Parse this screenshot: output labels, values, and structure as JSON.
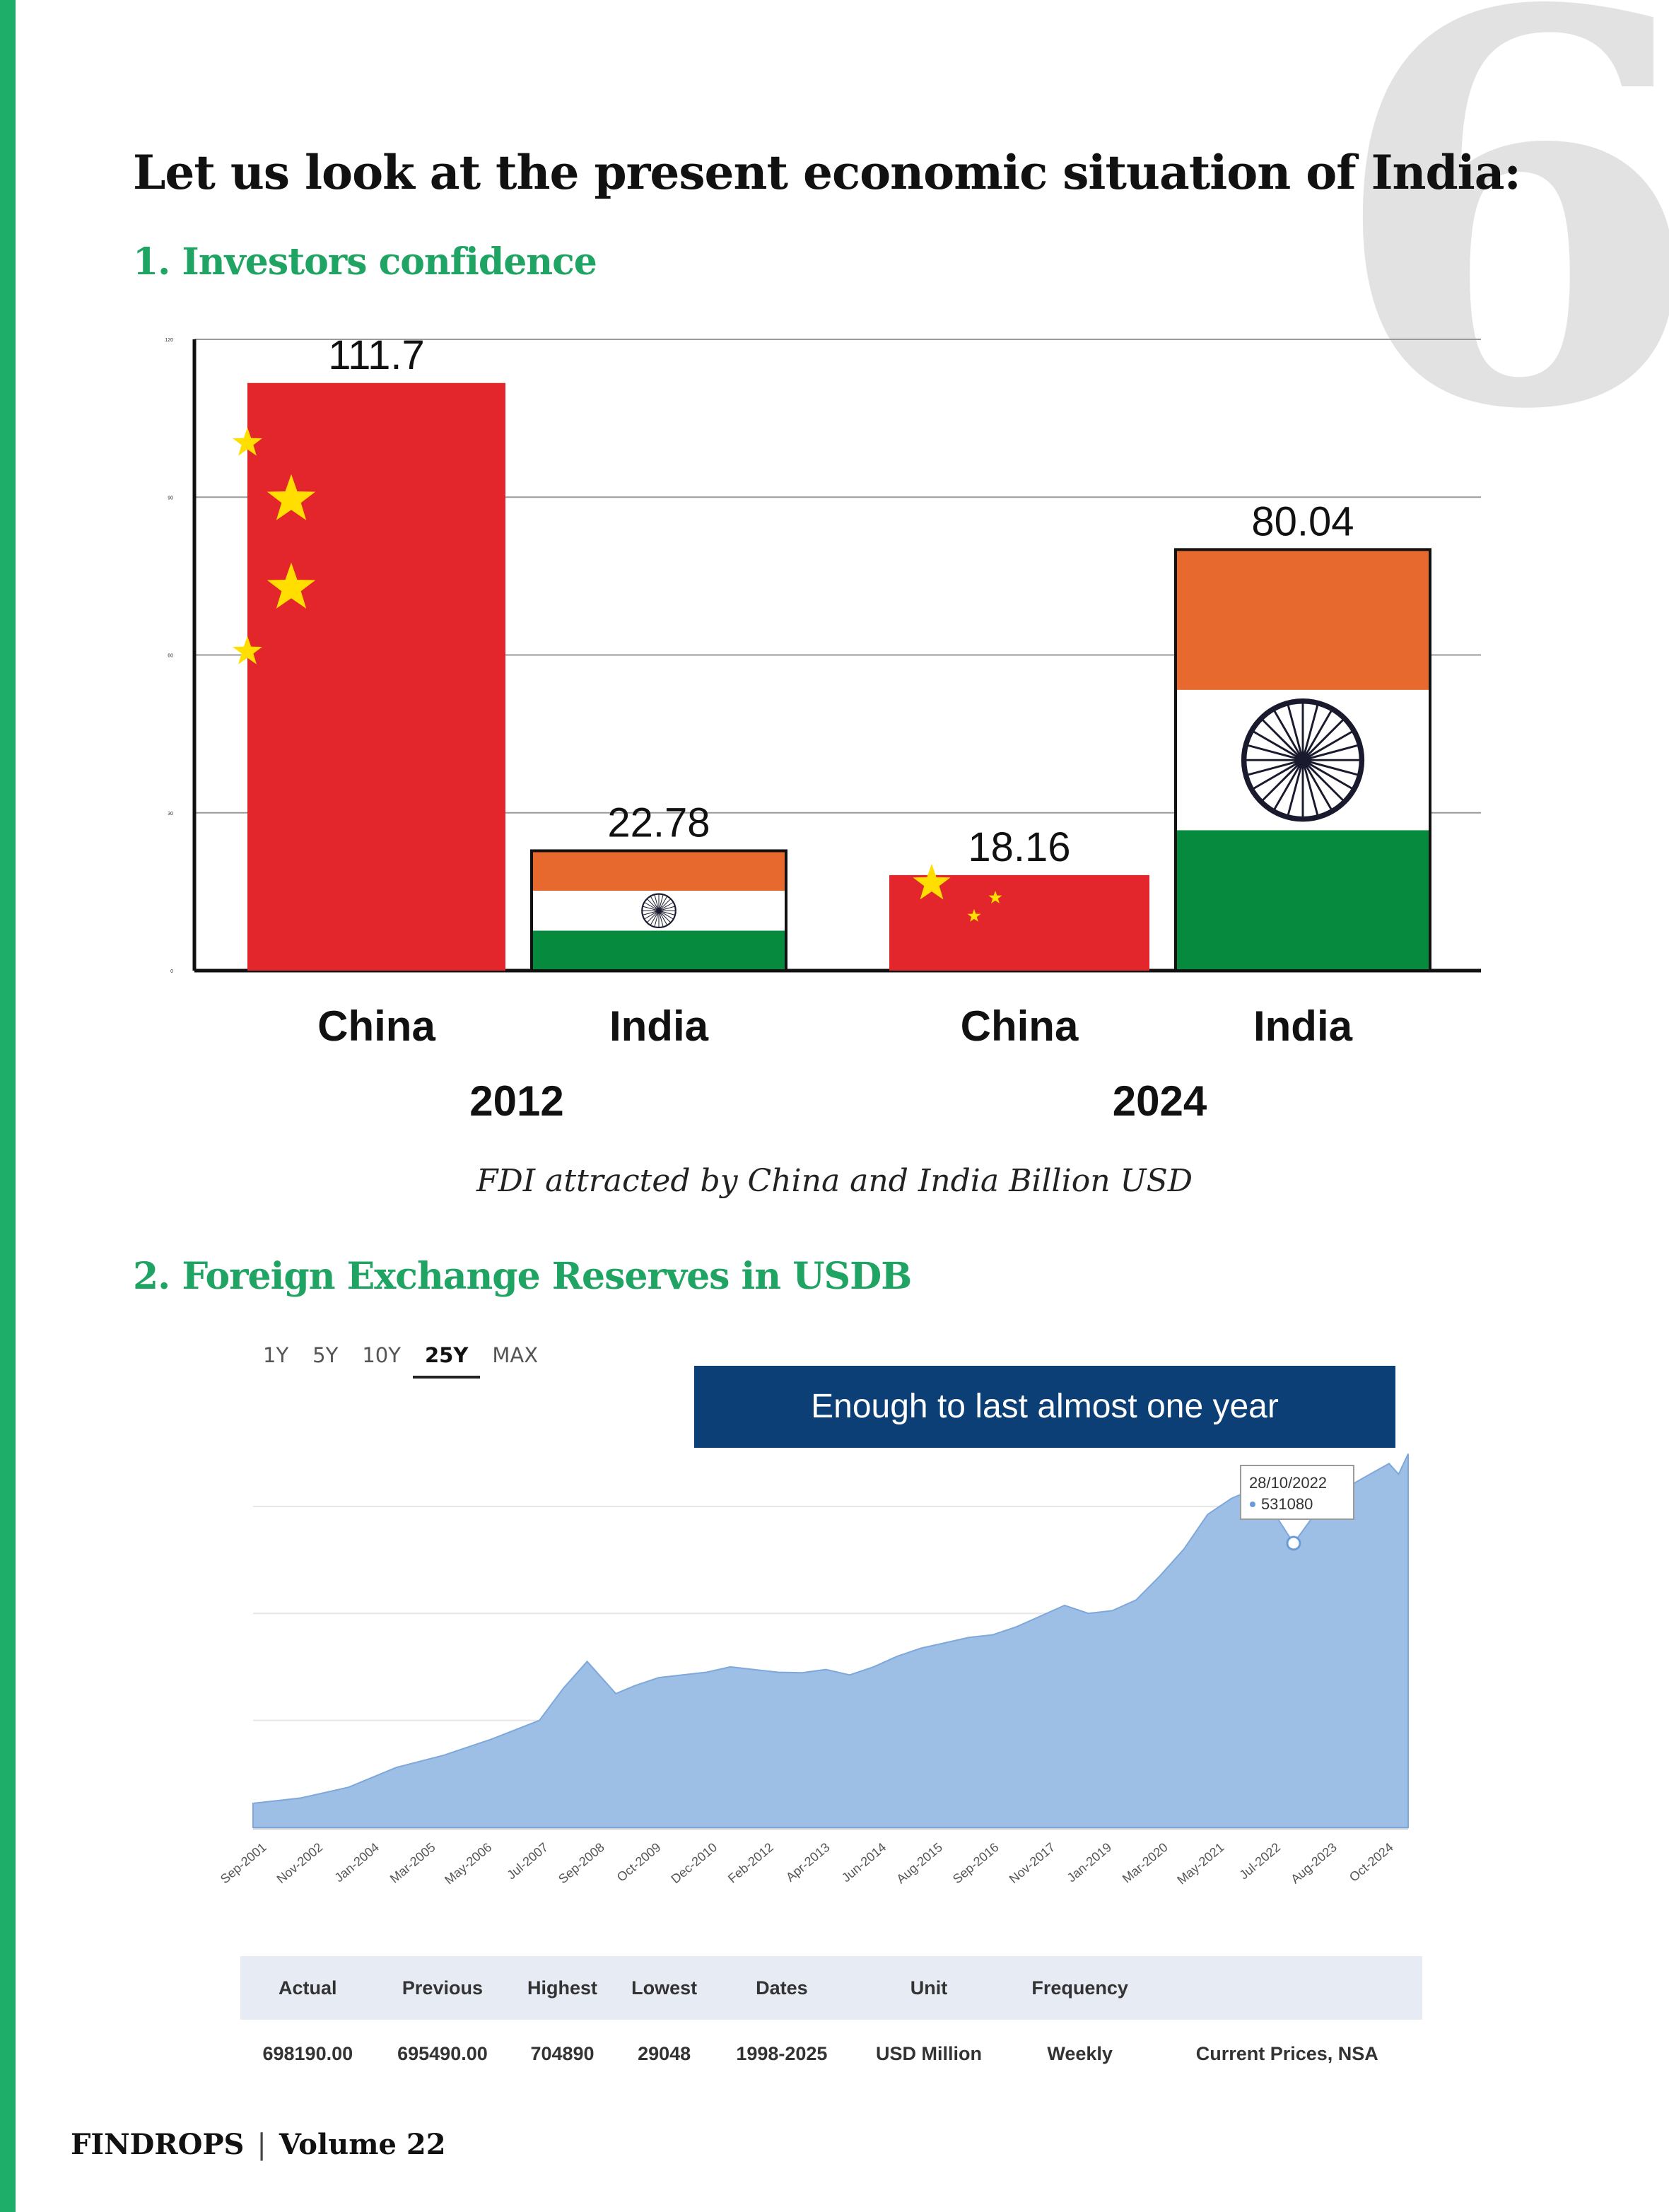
{
  "page": {
    "number": "6",
    "title": "Let us look at the present economic situation of India:",
    "footer_brand": "FINDROPS",
    "footer_separator": "|",
    "footer_volume": "Volume 22"
  },
  "section1": {
    "title": "1. Investors confidence",
    "caption": "FDI attracted by China and India Billion USD"
  },
  "section2": {
    "title": "2. Foreign Exchange Reserves in USDB",
    "range_tabs": [
      "1Y",
      "5Y",
      "10Y",
      "25Y",
      "MAX"
    ],
    "active_tab": "25Y",
    "callout": "Enough to last almost one year",
    "tooltip": {
      "date": "28/10/2022",
      "value": "531080"
    },
    "stats": {
      "headers": [
        "Actual",
        "Previous",
        "Highest",
        "Lowest",
        "Dates",
        "Unit",
        "Frequency",
        ""
      ],
      "values": [
        "698190.00",
        "695490.00",
        "704890",
        "29048",
        "1998-2025",
        "USD Million",
        "Weekly",
        "Current Prices, NSA"
      ]
    }
  },
  "chart_data": [
    {
      "type": "bar",
      "title": "",
      "groups": [
        "2012",
        "2024"
      ],
      "categories": [
        "China",
        "India",
        "China",
        "India"
      ],
      "group_of_category": [
        "2012",
        "2012",
        "2024",
        "2024"
      ],
      "values": [
        111.7,
        22.78,
        18.16,
        80.04
      ],
      "value_labels": [
        "111.7",
        "22.78",
        "18.16",
        "80.04"
      ],
      "bar_styles": [
        "china-flag",
        "india-flag",
        "china-flag",
        "india-flag"
      ],
      "ylim": [
        0,
        120
      ],
      "yticks": [
        0,
        30,
        60,
        90,
        120
      ],
      "grid": true,
      "colors": {
        "china_red": "#e2262b",
        "china_star": "#ffde00",
        "india_saffron": "#e8692d",
        "india_white": "#ffffff",
        "india_green": "#058a3e",
        "chakra": "#1a1a2e"
      }
    },
    {
      "type": "area",
      "xlabel": "",
      "ylabel": "",
      "x_ticks": [
        "Sep-2001",
        "Nov-2002",
        "Jan-2004",
        "Mar-2005",
        "May-2006",
        "Jul-2007",
        "Sep-2008",
        "Oct-2009",
        "Dec-2010",
        "Feb-2012",
        "Apr-2013",
        "Jun-2014",
        "Aug-2015",
        "Sep-2016",
        "Nov-2017",
        "Jan-2019",
        "Mar-2020",
        "May-2021",
        "Jul-2022",
        "Aug-2023",
        "Oct-2024"
      ],
      "x": [
        2001.0,
        2002.0,
        2003.0,
        2004.0,
        2005.0,
        2006.0,
        2007.0,
        2007.5,
        2008.0,
        2008.6,
        2009.0,
        2009.5,
        2010.0,
        2010.5,
        2011.0,
        2011.5,
        2012.0,
        2012.5,
        2013.0,
        2013.5,
        2014.0,
        2014.5,
        2015.0,
        2015.5,
        2016.0,
        2016.5,
        2017.0,
        2017.5,
        2018.0,
        2018.5,
        2019.0,
        2019.5,
        2020.0,
        2020.5,
        2021.0,
        2021.5,
        2021.9,
        2022.3,
        2022.8,
        2023.2,
        2023.6,
        2024.0,
        2024.4,
        2024.8,
        2025.0,
        2025.2
      ],
      "y": [
        45000,
        55000,
        75000,
        112000,
        135000,
        165000,
        200000,
        260000,
        310000,
        250000,
        265000,
        280000,
        285000,
        290000,
        300000,
        295000,
        290000,
        289000,
        295000,
        285000,
        300000,
        320000,
        335000,
        345000,
        355000,
        360000,
        375000,
        395000,
        415000,
        400000,
        405000,
        425000,
        470000,
        520000,
        585000,
        615000,
        630000,
        600000,
        531080,
        580000,
        595000,
        640000,
        660000,
        680000,
        660000,
        698190
      ],
      "ylim": [
        0,
        720000
      ],
      "grid": true,
      "color": "#9dbfe6",
      "highlight": {
        "x": 2022.8,
        "label_date": "28/10/2022",
        "label_value": "531080"
      }
    }
  ]
}
